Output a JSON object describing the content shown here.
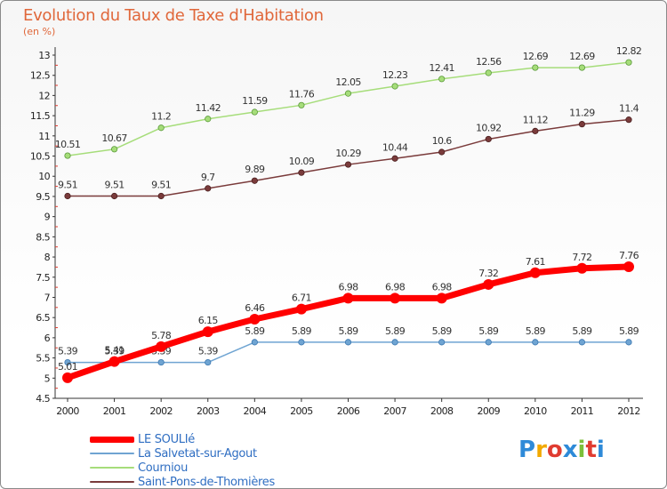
{
  "header": {
    "title": "Evolution du Taux de Taxe d'Habitation",
    "unit": "(en %)"
  },
  "logo": {
    "letters": [
      "P",
      "r",
      "o",
      "x",
      "i",
      "t",
      "i"
    ],
    "colors": [
      "#2e8ad8",
      "#f2a900",
      "#e03c31",
      "#2e8ad8",
      "#7cbf3a",
      "#e03c31",
      "#2e8ad8"
    ]
  },
  "chart_data": {
    "type": "line",
    "x": [
      "2000",
      "2001",
      "2002",
      "2003",
      "2004",
      "2005",
      "2006",
      "2007",
      "2008",
      "2009",
      "2010",
      "2011",
      "2012"
    ],
    "y_ticks": [
      "4.5",
      "5",
      "5.5",
      "6",
      "6.5",
      "7",
      "7.5",
      "8",
      "8.5",
      "9",
      "9.5",
      "10",
      "10.5",
      "11",
      "11.5",
      "12",
      "12.5",
      "13"
    ],
    "ylim": [
      4.5,
      13
    ],
    "grid": false,
    "legend_position": "bottom-left",
    "series": [
      {
        "name": "LE SOULIé",
        "color": "#ff0000",
        "values": [
          5.01,
          5.41,
          5.78,
          6.15,
          6.46,
          6.71,
          6.98,
          6.98,
          6.98,
          7.32,
          7.61,
          7.72,
          7.76
        ],
        "labels": [
          "5.01",
          "5.41",
          "5.78",
          "6.15",
          "6.46",
          "6.71",
          "6.98",
          "6.98",
          "6.98",
          "7.32",
          "7.61",
          "7.72",
          "7.76"
        ]
      },
      {
        "name": "La Salvetat-sur-Agout",
        "color": "#6fa4d2",
        "values": [
          5.39,
          5.39,
          5.39,
          5.39,
          5.89,
          5.89,
          5.89,
          5.89,
          5.89,
          5.89,
          5.89,
          5.89,
          5.89
        ],
        "labels": [
          "5.39",
          "5.39",
          "5.39",
          "5.39",
          "5.89",
          "5.89",
          "5.89",
          "5.89",
          "5.89",
          "5.89",
          "5.89",
          "5.89",
          "5.89"
        ]
      },
      {
        "name": "Courniou",
        "color": "#a6dd7a",
        "values": [
          10.51,
          10.67,
          11.2,
          11.42,
          11.59,
          11.76,
          12.05,
          12.23,
          12.41,
          12.56,
          12.69,
          12.69,
          12.82
        ],
        "labels": [
          "10.51",
          "10.67",
          "11.2",
          "11.42",
          "11.59",
          "11.76",
          "12.05",
          "12.23",
          "12.41",
          "12.56",
          "12.69",
          "12.69",
          "12.82"
        ]
      },
      {
        "name": "Saint-Pons-de-Thomières",
        "color": "#7a3b3b",
        "values": [
          9.51,
          9.51,
          9.51,
          9.7,
          9.89,
          10.09,
          10.29,
          10.44,
          10.6,
          10.92,
          11.12,
          11.29,
          11.4
        ],
        "labels": [
          "9.51",
          "9.51",
          "9.51",
          "9.7",
          "9.89",
          "10.09",
          "10.29",
          "10.44",
          "10.6",
          "10.92",
          "11.12",
          "11.29",
          "11.4"
        ]
      }
    ]
  }
}
